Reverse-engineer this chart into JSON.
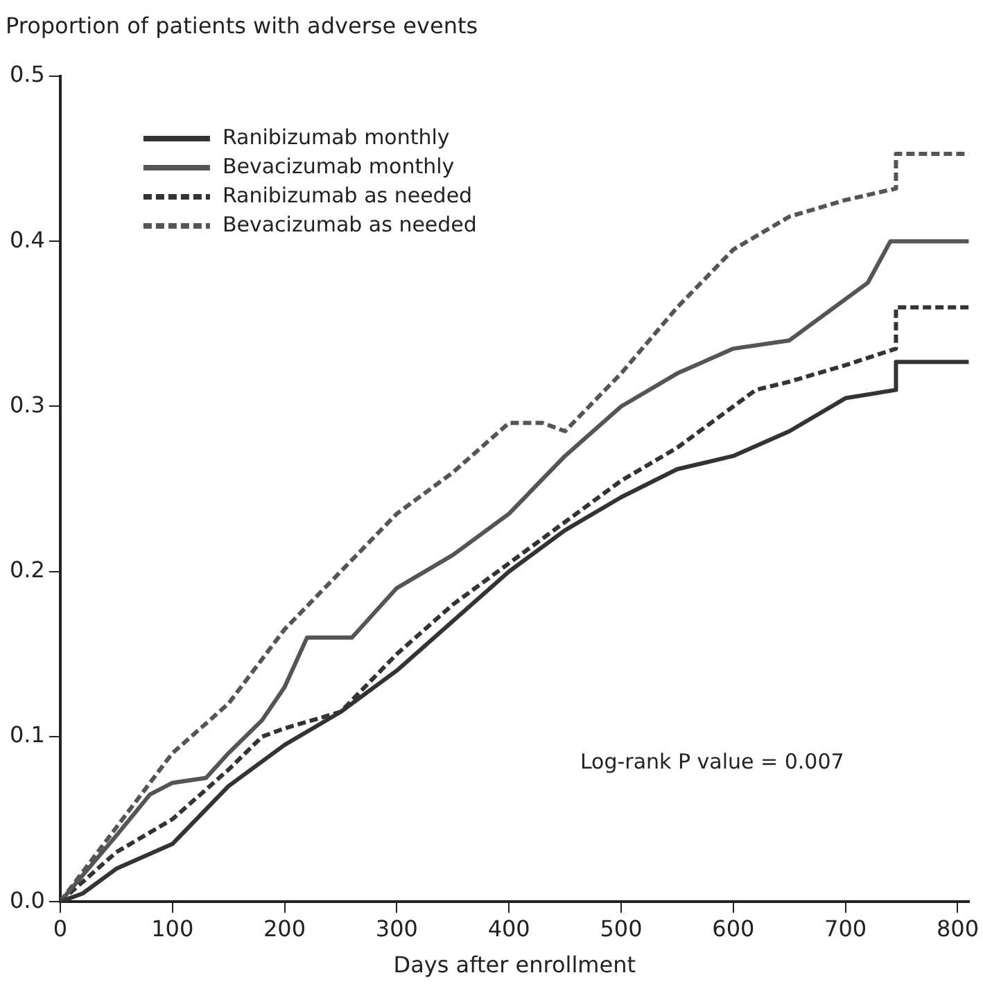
{
  "chart_data": {
    "type": "line",
    "ylabel": "Proportion of patients with adverse events",
    "xlabel": "Days after enrollment",
    "xlim": [
      0,
      810
    ],
    "xticks": [
      0,
      100,
      200,
      300,
      400,
      500,
      600,
      700,
      800
    ],
    "ylim": [
      0,
      0.5
    ],
    "yticks": [
      {
        "value": 0,
        "label": "0.0"
      },
      0.1,
      0.2,
      0.3,
      0.4,
      0.5
    ],
    "grid": false,
    "legend": "top left",
    "marker": "none",
    "annotations": [
      "Log-rank P value = 0.007"
    ],
    "series": [
      {
        "name": "Ranibizumab monthly",
        "color": "#333333",
        "line_style": "solid",
        "x": [
          0,
          20,
          50,
          100,
          150,
          200,
          250,
          300,
          350,
          400,
          450,
          500,
          550,
          600,
          650,
          700,
          745,
          745,
          810
        ],
        "values": [
          0,
          0.005,
          0.02,
          0.035,
          0.07,
          0.095,
          0.115,
          0.14,
          0.17,
          0.2,
          0.225,
          0.245,
          0.262,
          0.27,
          0.285,
          0.305,
          0.31,
          0.327,
          0.327
        ]
      },
      {
        "name": "Bevacizumab monthly",
        "color": "#555555",
        "line_style": "solid",
        "x": [
          0,
          50,
          80,
          100,
          130,
          150,
          180,
          200,
          220,
          260,
          300,
          350,
          400,
          450,
          500,
          550,
          600,
          650,
          680,
          720,
          740,
          810
        ],
        "values": [
          0,
          0.04,
          0.065,
          0.072,
          0.075,
          0.09,
          0.11,
          0.13,
          0.16,
          0.16,
          0.19,
          0.21,
          0.235,
          0.27,
          0.3,
          0.32,
          0.335,
          0.34,
          0.355,
          0.375,
          0.4,
          0.4
        ]
      },
      {
        "name": "Ranibizumab as needed",
        "color": "#333333",
        "line_style": "dashed",
        "x": [
          0,
          50,
          100,
          150,
          180,
          200,
          250,
          300,
          350,
          400,
          450,
          500,
          550,
          600,
          620,
          650,
          700,
          745,
          745,
          810
        ],
        "values": [
          0,
          0.03,
          0.05,
          0.08,
          0.1,
          0.105,
          0.115,
          0.15,
          0.18,
          0.205,
          0.23,
          0.255,
          0.275,
          0.3,
          0.31,
          0.315,
          0.325,
          0.335,
          0.36,
          0.36
        ]
      },
      {
        "name": "Bevacizumab as needed",
        "color": "#555555",
        "line_style": "dashed",
        "x": [
          0,
          50,
          100,
          150,
          200,
          250,
          300,
          350,
          400,
          430,
          450,
          500,
          550,
          600,
          650,
          700,
          745,
          745,
          810
        ],
        "values": [
          0,
          0.045,
          0.09,
          0.12,
          0.165,
          0.2,
          0.235,
          0.26,
          0.29,
          0.29,
          0.285,
          0.32,
          0.36,
          0.395,
          0.415,
          0.425,
          0.432,
          0.453,
          0.453
        ]
      }
    ]
  }
}
